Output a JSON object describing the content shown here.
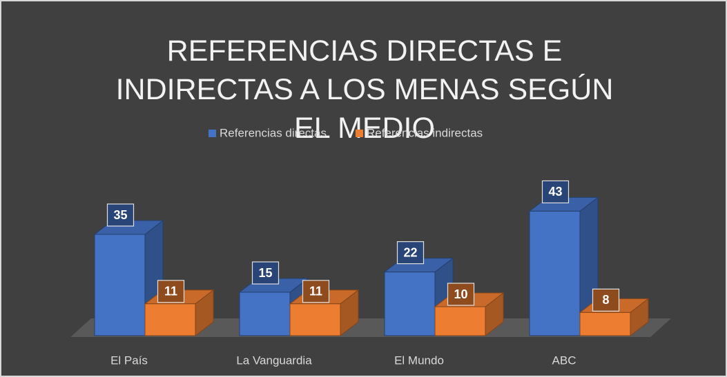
{
  "chart_data": {
    "type": "bar3d",
    "title": "REFERENCIAS DIRECTAS E INDIRECTAS A LOS MENAS SEGÚN EL MEDIO",
    "categories": [
      "El País",
      "La Vanguardia",
      "El Mundo",
      "ABC"
    ],
    "series": [
      {
        "name": "Referencias directas",
        "color": "#4472c4",
        "values": [
          35,
          15,
          22,
          43
        ]
      },
      {
        "name": "Referencias indirectas",
        "color": "#ed7d31",
        "values": [
          11,
          11,
          10,
          8
        ]
      }
    ],
    "legend": "top",
    "grid": false
  }
}
